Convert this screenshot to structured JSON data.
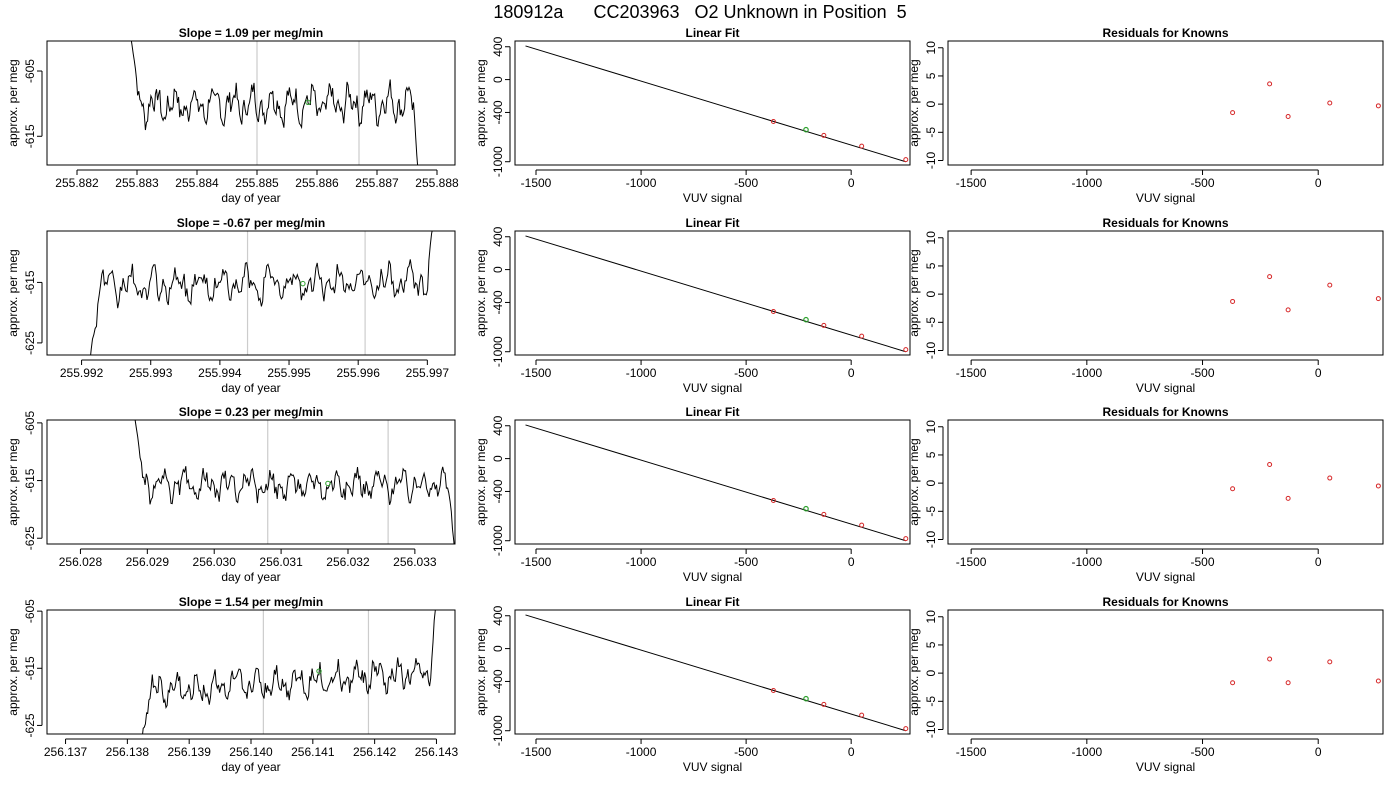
{
  "title": "180912a      CC203963   O2 Unknown in Position  5",
  "colors": {
    "trace": "#000000",
    "known_point": "#d62728",
    "unknown_point": "#2ca02c",
    "marker_line": "#cccccc",
    "frame": "#000000"
  },
  "chart_data": [
    {
      "type": "line",
      "panel": "trace",
      "row": 1,
      "title": "Slope =  1.09  per meg/min",
      "xlabel": "day of year",
      "ylabel": "approx. per meg",
      "xlim": [
        255.8815,
        255.8883
      ],
      "ylim": [
        -619.4,
        -600.4
      ],
      "xticks": [
        "255.882",
        "255.883",
        "255.884",
        "255.885",
        "255.886",
        "255.887",
        "255.888"
      ],
      "yticks": [
        "-605",
        "-615"
      ],
      "trace_start": 255.8829,
      "trace_end": 255.8877,
      "trace_level": -610.1,
      "trace_amplitude": 1.7,
      "trace_trend": 0.4,
      "edge_start": -600.0,
      "edge_end": -622.0,
      "markers": [
        255.885,
        255.8867
      ],
      "unknown_point": {
        "x": 255.88585,
        "y": -609.8
      }
    },
    {
      "type": "scatter",
      "panel": "fit",
      "row": 1,
      "title": "Linear Fit",
      "xlabel": "VUV signal",
      "ylabel": "approx. per meg",
      "xlim": [
        -1600,
        280
      ],
      "ylim": [
        -1040,
        470
      ],
      "xticks": [
        "-1500",
        "-1000",
        "-500",
        "0"
      ],
      "yticks": [
        "400",
        "0",
        "-400",
        "-1000"
      ],
      "line": {
        "x": [
          -1550,
          260
        ],
        "y": [
          410,
          -1000
        ]
      },
      "known_points": [
        {
          "x": -370,
          "y": -510
        },
        {
          "x": -130,
          "y": -680
        },
        {
          "x": 50,
          "y": -810
        },
        {
          "x": 260,
          "y": -975
        }
      ],
      "unknown_point": {
        "x": -215,
        "y": -610
      }
    },
    {
      "type": "scatter",
      "panel": "residuals",
      "row": 1,
      "title": "Residuals for Knowns",
      "xlabel": "VUV signal",
      "ylabel": "approx. per meg",
      "xlim": [
        -1600,
        280
      ],
      "ylim": [
        -10.8,
        11.2
      ],
      "xticks": [
        "-1500",
        "-1000",
        "-500",
        "0"
      ],
      "yticks": [
        "10",
        "5",
        "0",
        "-5",
        "-10"
      ],
      "points": [
        {
          "x": -370,
          "y": -1.5
        },
        {
          "x": -210,
          "y": 3.6
        },
        {
          "x": -130,
          "y": -2.2
        },
        {
          "x": 50,
          "y": 0.2
        },
        {
          "x": 260,
          "y": -0.3
        }
      ]
    },
    {
      "type": "line",
      "panel": "trace",
      "row": 2,
      "title": "Slope =  -0.67  per meg/min",
      "xlabel": "day of year",
      "ylabel": "approx. per meg",
      "xlim": [
        255.9915,
        255.9974
      ],
      "ylim": [
        -627.0,
        -606.5
      ],
      "xticks": [
        "255.992",
        "255.993",
        "255.994",
        "255.995",
        "255.996",
        "255.997"
      ],
      "yticks": [
        "-615",
        "-625"
      ],
      "trace_start": 255.9921,
      "trace_end": 255.9971,
      "trace_level": -615.3,
      "trace_amplitude": 1.8,
      "trace_trend": 1.0,
      "edge_start": -630.0,
      "edge_end": -604.0,
      "markers": [
        255.9944,
        255.9961
      ],
      "unknown_point": {
        "x": 255.9952,
        "y": -615.2
      }
    },
    {
      "type": "scatter",
      "panel": "fit",
      "row": 2,
      "title": "Linear Fit",
      "xlabel": "VUV signal",
      "ylabel": "approx. per meg",
      "xlim": [
        -1600,
        280
      ],
      "ylim": [
        -1040,
        470
      ],
      "xticks": [
        "-1500",
        "-1000",
        "-500",
        "0"
      ],
      "yticks": [
        "400",
        "0",
        "-400",
        "-1000"
      ],
      "line": {
        "x": [
          -1550,
          260
        ],
        "y": [
          410,
          -1000
        ]
      },
      "known_points": [
        {
          "x": -370,
          "y": -510
        },
        {
          "x": -130,
          "y": -680
        },
        {
          "x": 50,
          "y": -810
        },
        {
          "x": 260,
          "y": -975
        }
      ],
      "unknown_point": {
        "x": -215,
        "y": -610
      }
    },
    {
      "type": "scatter",
      "panel": "residuals",
      "row": 2,
      "title": "Residuals for Knowns",
      "xlabel": "VUV signal",
      "ylabel": "approx. per meg",
      "xlim": [
        -1600,
        280
      ],
      "ylim": [
        -10.8,
        11.2
      ],
      "xticks": [
        "-1500",
        "-1000",
        "-500",
        "0"
      ],
      "yticks": [
        "10",
        "5",
        "0",
        "-5",
        "-10"
      ],
      "points": [
        {
          "x": -370,
          "y": -1.3
        },
        {
          "x": -210,
          "y": 3.1
        },
        {
          "x": -130,
          "y": -2.8
        },
        {
          "x": 50,
          "y": 1.6
        },
        {
          "x": 260,
          "y": -0.8
        }
      ]
    },
    {
      "type": "line",
      "panel": "trace",
      "row": 3,
      "title": "Slope =  0.23  per meg/min",
      "xlabel": "day of year",
      "ylabel": "approx. per meg",
      "xlim": [
        256.0275,
        256.0336
      ],
      "ylim": [
        -626.0,
        -604.5
      ],
      "xticks": [
        "256.028",
        "256.029",
        "256.030",
        "256.031",
        "256.032",
        "256.033"
      ],
      "yticks": [
        "-605",
        "-615",
        "-625"
      ],
      "trace_start": 256.0288,
      "trace_end": 256.0336,
      "trace_level": -615.8,
      "trace_amplitude": 1.6,
      "trace_trend": 0.3,
      "edge_start": -603.0,
      "edge_end": -628.0,
      "markers": [
        256.0308,
        256.0326
      ],
      "unknown_point": {
        "x": 256.0317,
        "y": -615.5
      }
    },
    {
      "type": "scatter",
      "panel": "fit",
      "row": 3,
      "title": "Linear Fit",
      "xlabel": "VUV signal",
      "ylabel": "approx. per meg",
      "xlim": [
        -1600,
        280
      ],
      "ylim": [
        -1040,
        470
      ],
      "xticks": [
        "-1500",
        "-1000",
        "-500",
        "0"
      ],
      "yticks": [
        "400",
        "0",
        "-400",
        "-1000"
      ],
      "line": {
        "x": [
          -1550,
          260
        ],
        "y": [
          410,
          -1000
        ]
      },
      "known_points": [
        {
          "x": -370,
          "y": -510
        },
        {
          "x": -130,
          "y": -680
        },
        {
          "x": 50,
          "y": -810
        },
        {
          "x": 260,
          "y": -975
        }
      ],
      "unknown_point": {
        "x": -215,
        "y": -610
      }
    },
    {
      "type": "scatter",
      "panel": "residuals",
      "row": 3,
      "title": "Residuals for Knowns",
      "xlabel": "VUV signal",
      "ylabel": "approx. per meg",
      "xlim": [
        -1600,
        280
      ],
      "ylim": [
        -10.8,
        11.2
      ],
      "xticks": [
        "-1500",
        "-1000",
        "-500",
        "0"
      ],
      "yticks": [
        "10",
        "5",
        "0",
        "-5",
        "-10"
      ],
      "points": [
        {
          "x": -370,
          "y": -1.0
        },
        {
          "x": -210,
          "y": 3.3
        },
        {
          "x": -130,
          "y": -2.7
        },
        {
          "x": 50,
          "y": 0.9
        },
        {
          "x": 260,
          "y": -0.5
        }
      ]
    },
    {
      "type": "line",
      "panel": "trace",
      "row": 4,
      "title": "Slope =  1.54  per meg/min",
      "xlabel": "day of year",
      "ylabel": "approx. per meg",
      "xlim": [
        256.1367,
        256.1433
      ],
      "ylim": [
        -626.5,
        -604.8
      ],
      "xticks": [
        "256.137",
        "256.138",
        "256.139",
        "256.140",
        "256.141",
        "256.142",
        "256.143"
      ],
      "yticks": [
        "-605",
        "-615",
        "-625"
      ],
      "trace_start": 256.1382,
      "trace_end": 256.143,
      "trace_level": -617.5,
      "trace_amplitude": 1.7,
      "trace_trend": 3.5,
      "edge_start": -630.0,
      "edge_end": -603.0,
      "markers": [
        256.1402,
        256.1419
      ],
      "unknown_point": {
        "x": 256.1411,
        "y": -615.5
      }
    },
    {
      "type": "scatter",
      "panel": "fit",
      "row": 4,
      "title": "Linear Fit",
      "xlabel": "VUV signal",
      "ylabel": "approx. per meg",
      "xlim": [
        -1600,
        280
      ],
      "ylim": [
        -1040,
        470
      ],
      "xticks": [
        "-1500",
        "-1000",
        "-500",
        "0"
      ],
      "yticks": [
        "400",
        "0",
        "-400",
        "-1000"
      ],
      "line": {
        "x": [
          -1550,
          260
        ],
        "y": [
          410,
          -1000
        ]
      },
      "known_points": [
        {
          "x": -370,
          "y": -510
        },
        {
          "x": -130,
          "y": -680
        },
        {
          "x": 50,
          "y": -810
        },
        {
          "x": 260,
          "y": -975
        }
      ],
      "unknown_point": {
        "x": -215,
        "y": -610
      }
    },
    {
      "type": "scatter",
      "panel": "residuals",
      "row": 4,
      "title": "Residuals for Knowns",
      "xlabel": "VUV signal",
      "ylabel": "approx. per meg",
      "xlim": [
        -1600,
        280
      ],
      "ylim": [
        -10.8,
        11.2
      ],
      "xticks": [
        "-1500",
        "-1000",
        "-500",
        "0"
      ],
      "yticks": [
        "10",
        "5",
        "0",
        "-5",
        "-10"
      ],
      "points": [
        {
          "x": -370,
          "y": -1.7
        },
        {
          "x": -210,
          "y": 2.5
        },
        {
          "x": -130,
          "y": -1.7
        },
        {
          "x": 50,
          "y": 2.0
        },
        {
          "x": 260,
          "y": -1.4
        }
      ]
    }
  ]
}
